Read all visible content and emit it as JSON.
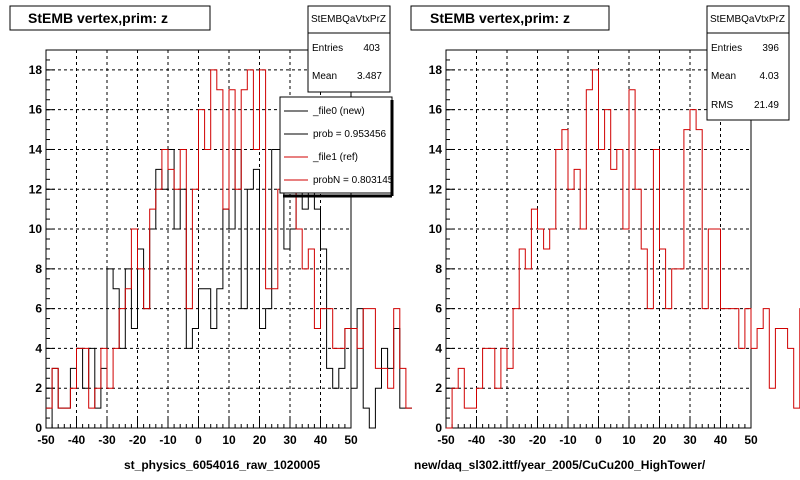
{
  "colors": {
    "file0": "#000000",
    "file1": "#d00000",
    "grid": "#000000"
  },
  "panels": [
    {
      "title": "StEMB  vertex,prim: z",
      "xlabel": "st_physics_6054016_raw_1020005"
    },
    {
      "title": "StEMB  vertex,prim: z",
      "xlabel": "new/daq_sl302.ittf/year_2005/CuCu200_HighTower/"
    }
  ],
  "stats": [
    {
      "name": "StEMBQaVtxPrZ",
      "rows": [
        {
          "k": "Entries",
          "v": "403"
        },
        {
          "k": "Mean",
          "v": "3.487"
        }
      ]
    },
    {
      "name": "StEMBQaVtxPrZ",
      "rows": [
        {
          "k": "Entries",
          "v": "396"
        },
        {
          "k": "Mean",
          "v": "4.03"
        },
        {
          "k": "RMS",
          "v": "21.49"
        }
      ]
    }
  ],
  "legend": [
    {
      "label": "_file0 (new)",
      "color": "#000000"
    },
    {
      "label": "prob = 0.953456",
      "color": "#000000"
    },
    {
      "label": "_file1 (ref)",
      "color": "#d00000"
    },
    {
      "label": "probN = 0.803145",
      "color": "#d00000"
    }
  ],
  "footer": "",
  "chart_data": [
    {
      "type": "histogram",
      "title": "StEMB  vertex,prim: z",
      "xlabel": "st_physics_6054016_raw_1020005",
      "xlim": [
        -50,
        50
      ],
      "ylim": [
        0,
        19
      ],
      "xticks": [
        -50,
        -40,
        -30,
        -20,
        -10,
        0,
        10,
        20,
        30,
        40,
        50
      ],
      "yticks": [
        0,
        2,
        4,
        6,
        8,
        10,
        12,
        14,
        16,
        18
      ],
      "bin_width": 2,
      "grid": true,
      "legend_position": "top-right",
      "series": [
        {
          "name": "_file0 (new)",
          "edge_start": -50,
          "values": [
            0,
            3,
            1,
            1,
            3,
            4,
            2,
            4,
            1,
            3,
            8,
            7,
            4,
            8,
            5,
            9,
            6,
            10,
            13,
            12,
            14,
            10,
            12,
            4,
            5,
            7,
            7,
            5,
            7,
            11,
            10,
            14,
            6,
            12,
            13,
            5,
            6,
            14,
            14,
            9,
            10,
            14,
            11,
            12,
            11,
            9,
            3,
            2,
            3,
            5,
            2,
            6,
            1,
            0,
            2,
            4,
            3,
            5,
            1,
            1
          ]
        },
        {
          "name": "_file1 (ref)",
          "edge_start": -50,
          "values": [
            1,
            3,
            1,
            1,
            2,
            4,
            4,
            1,
            2,
            4,
            2,
            4,
            6,
            7,
            10,
            8,
            6,
            11,
            12,
            14,
            13,
            12,
            14,
            6,
            12,
            16,
            14,
            18,
            17,
            11,
            17,
            12,
            17,
            18,
            14,
            18,
            7,
            7,
            12,
            15,
            15,
            10,
            8,
            9,
            5,
            6,
            6,
            4,
            4,
            5,
            5,
            4,
            6,
            6,
            3,
            3,
            2,
            6,
            3,
            1
          ]
        }
      ]
    },
    {
      "type": "histogram",
      "title": "StEMB  vertex,prim: z",
      "xlabel": "new/daq_sl302.ittf/year_2005/CuCu200_HighTower/",
      "xlim": [
        -50,
        50
      ],
      "ylim": [
        0,
        19
      ],
      "xticks": [
        -50,
        -40,
        -30,
        -20,
        -10,
        0,
        10,
        20,
        30,
        40,
        50
      ],
      "yticks": [
        0,
        2,
        4,
        6,
        8,
        10,
        12,
        14,
        16,
        18
      ],
      "bin_width": 2,
      "grid": true,
      "series": [
        {
          "name": "",
          "edge_start": -50,
          "values": [
            0,
            2,
            3,
            1,
            1,
            2,
            4,
            4,
            2,
            4,
            3,
            6,
            9,
            8,
            11,
            10,
            9,
            10,
            14,
            15,
            12,
            13,
            10,
            17,
            18,
            14,
            16,
            13,
            14,
            10,
            17,
            12,
            9,
            6,
            14,
            9,
            6,
            8,
            8,
            15,
            16,
            15,
            6,
            10,
            10,
            6,
            6,
            6,
            4,
            6,
            4,
            5,
            6,
            2,
            5,
            5,
            4,
            1,
            6,
            1
          ]
        }
      ]
    }
  ]
}
